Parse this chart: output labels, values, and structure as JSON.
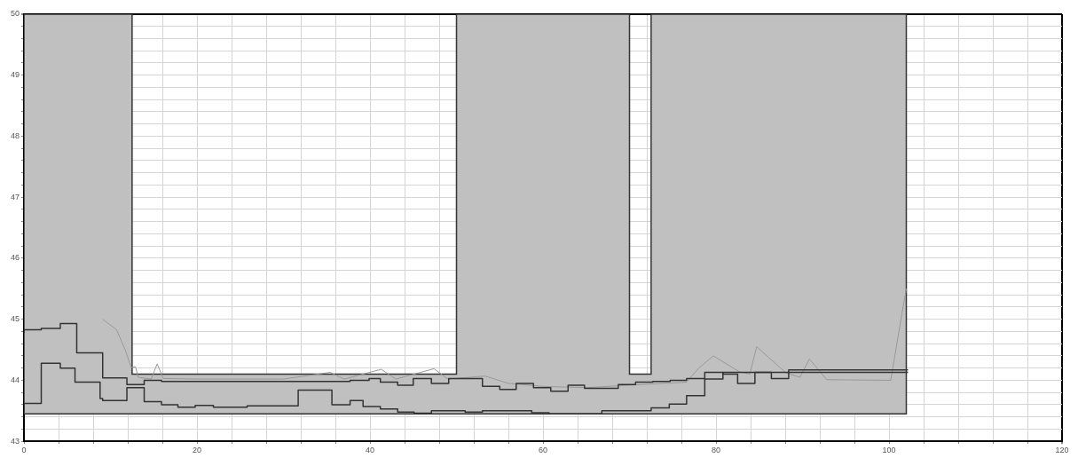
{
  "chart_data": {
    "type": "step",
    "grid": true,
    "marker": "none",
    "xlim": [
      0,
      120
    ],
    "xticks": [
      0,
      {
        "value": 4,
        "label": null
      },
      {
        "value": 8,
        "label": null
      },
      {
        "value": 12,
        "label": null
      },
      {
        "value": 16,
        "label": null
      },
      20,
      {
        "value": 24,
        "label": null
      },
      {
        "value": 28,
        "label": null
      },
      {
        "value": 32,
        "label": null
      },
      {
        "value": 36,
        "label": null
      },
      40,
      {
        "value": 44,
        "label": null
      },
      {
        "value": 48,
        "label": null
      },
      {
        "value": 52,
        "label": null
      },
      {
        "value": 56,
        "label": null
      },
      60,
      {
        "value": 64,
        "label": null
      },
      {
        "value": 68,
        "label": null
      },
      {
        "value": 72,
        "label": null
      },
      {
        "value": 76,
        "label": null
      },
      80,
      {
        "value": 84,
        "label": null
      },
      {
        "value": 88,
        "label": null
      },
      {
        "value": 92,
        "label": null
      },
      {
        "value": 96,
        "label": null
      },
      100,
      {
        "value": 104,
        "label": null
      },
      {
        "value": 108,
        "label": null
      },
      {
        "value": 112,
        "label": null
      },
      {
        "value": 116,
        "label": null
      },
      120
    ],
    "ylim": [
      43,
      50
    ],
    "yticks": [
      43,
      {
        "value": 43.2,
        "label": null
      },
      {
        "value": 43.4,
        "label": null
      },
      {
        "value": 43.6,
        "label": null
      },
      {
        "value": 43.8,
        "label": null
      },
      44,
      {
        "value": 44.2,
        "label": null
      },
      {
        "value": 44.4,
        "label": null
      },
      {
        "value": 44.6,
        "label": null
      },
      {
        "value": 44.8,
        "label": null
      },
      45,
      {
        "value": 45.2,
        "label": null
      },
      {
        "value": 45.4,
        "label": null
      },
      {
        "value": 45.6,
        "label": null
      },
      {
        "value": 45.8,
        "label": null
      },
      46,
      {
        "value": 46.2,
        "label": null
      },
      {
        "value": 46.4,
        "label": null
      },
      {
        "value": 46.6,
        "label": null
      },
      {
        "value": 46.8,
        "label": null
      },
      47,
      {
        "value": 47.2,
        "label": null
      },
      {
        "value": 47.4,
        "label": null
      },
      {
        "value": 47.6,
        "label": null
      },
      {
        "value": 47.8,
        "label": null
      },
      48,
      {
        "value": 48.2,
        "label": null
      },
      {
        "value": 48.4,
        "label": null
      },
      {
        "value": 48.6,
        "label": null
      },
      {
        "value": 48.8,
        "label": null
      },
      49,
      {
        "value": 49.2,
        "label": null
      },
      {
        "value": 49.4,
        "label": null
      },
      {
        "value": 49.6,
        "label": null
      },
      {
        "value": 49.8,
        "label": null
      },
      50
    ],
    "series": [
      {
        "type": "area",
        "color": "#c0c0c0",
        "x": [
          0,
          0,
          12.5,
          12.5,
          50,
          50,
          70,
          70,
          72.5,
          72.5,
          102,
          102,
          0
        ],
        "values": [
          43.45,
          50,
          50,
          44.1,
          44.1,
          50,
          50,
          44.1,
          44.1,
          50,
          50,
          43.45,
          43.45
        ]
      },
      {
        "type": "line",
        "color": "#999999",
        "x": [
          9.1,
          10.7,
          11.7,
          12.4,
          12.9,
          13.2,
          14.7,
          15.4,
          16.1,
          20,
          30,
          35.4,
          37,
          41.3,
          43,
          47.4,
          49,
          53.3,
          56,
          60,
          65,
          70,
          76.6,
          78,
          79.7,
          82.7,
          83.9,
          84.7,
          88.1,
          89.7,
          90.8,
          92.8,
          100.2,
          101.5,
          102
        ],
        "values": [
          45,
          44.83,
          44.5,
          44.21,
          44.22,
          44.05,
          44.02,
          44.27,
          44.03,
          44.02,
          44.02,
          44.13,
          44.02,
          44.18,
          44.02,
          44.19,
          44.02,
          44.07,
          43.95,
          43.9,
          43.88,
          43.92,
          43.97,
          44.2,
          44.4,
          44.14,
          44.1,
          44.55,
          44.12,
          44.05,
          44.35,
          44.01,
          44,
          45.1,
          45.5
        ]
      },
      {
        "color": "#333333",
        "x": [
          0,
          2,
          4.2,
          6.1,
          9.1,
          11.9,
          13.9,
          15.9,
          37.7,
          39.9,
          41.2,
          43.2,
          45,
          47.1,
          49.1,
          53,
          55,
          56.9,
          58.9,
          60.9,
          62.9,
          64.8,
          68.7,
          70.7,
          72.7,
          74.7,
          76.6,
          78.7,
          80.8,
          100.1,
          102.2
        ],
        "values": [
          44.77,
          44.83,
          44.85,
          44.93,
          44.45,
          44.04,
          43.93,
          44,
          43.98,
          44,
          44.03,
          43.97,
          43.92,
          44.03,
          43.95,
          44.03,
          43.9,
          43.85,
          43.95,
          43.88,
          43.82,
          43.92,
          43.87,
          43.93,
          43.97,
          43.98,
          44,
          44.03,
          44.02,
          44.13,
          44.13
        ]
      },
      {
        "color": "#333333",
        "x": [
          0,
          2,
          4.2,
          5.9,
          8.8,
          9.1,
          11.9,
          13.9,
          15.9,
          17.8,
          19.8,
          21.9,
          25.8,
          31.7,
          35.6,
          37.7,
          39.2,
          41.2,
          43.2,
          45.1,
          47.1,
          51,
          53,
          58.7,
          60.7,
          66.8,
          72.5,
          74.6,
          76.6,
          78.7,
          80.8,
          82.5,
          84.5,
          86.4,
          88.4,
          100.1,
          102.2
        ],
        "values": [
          43.47,
          43.62,
          44.28,
          44.2,
          43.97,
          43.7,
          43.67,
          43.88,
          43.65,
          43.6,
          43.56,
          43.59,
          43.56,
          43.58,
          43.84,
          43.6,
          43.67,
          43.57,
          43.53,
          43.48,
          43.46,
          43.5,
          43.48,
          43.5,
          43.47,
          43.45,
          43.5,
          43.55,
          43.61,
          43.75,
          44.13,
          44.1,
          43.95,
          44.13,
          44.03,
          44.17,
          44.17
        ]
      }
    ]
  }
}
